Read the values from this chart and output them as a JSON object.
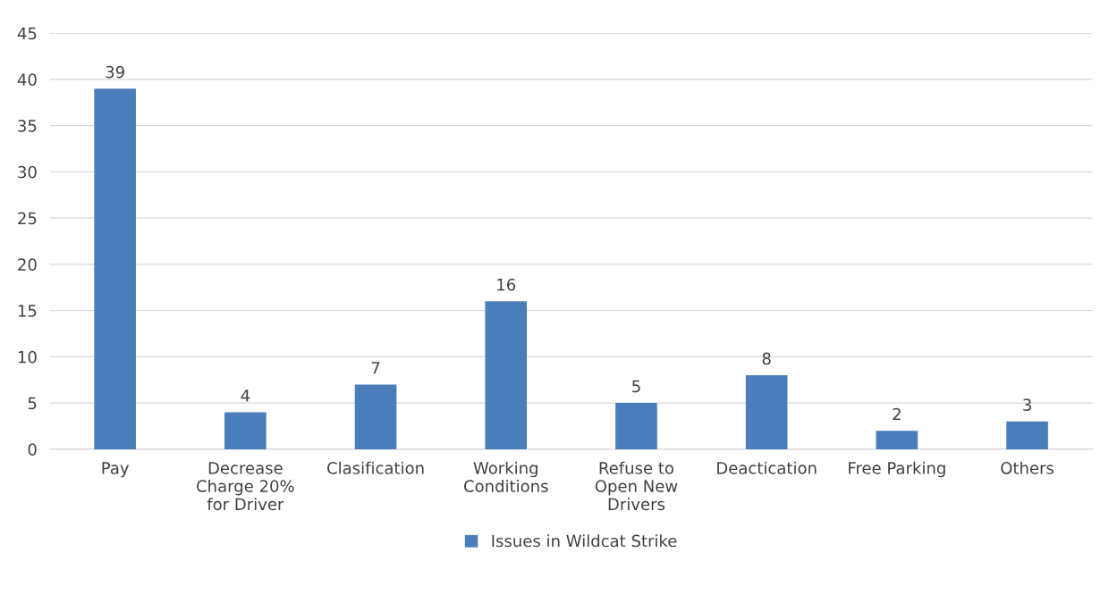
{
  "chart_data": {
    "type": "bar",
    "categories": [
      "Pay",
      "Decrease\nCharge 20%\nfor Driver",
      "Clasification",
      "Working\nConditions",
      "Refuse to\nOpen New\nDrivers",
      "Deactication",
      "Free Parking",
      "Others"
    ],
    "series": [
      {
        "name": "Issues in Wildcat Strike",
        "color": "#4a7ebb",
        "values": [
          39,
          4,
          7,
          16,
          5,
          8,
          2,
          3
        ]
      }
    ],
    "ylim": [
      0,
      45
    ],
    "yticks": [
      0,
      5,
      10,
      15,
      20,
      25,
      30,
      35,
      40,
      45
    ],
    "grid": "y",
    "legend": "bottom",
    "data_labels": true
  }
}
